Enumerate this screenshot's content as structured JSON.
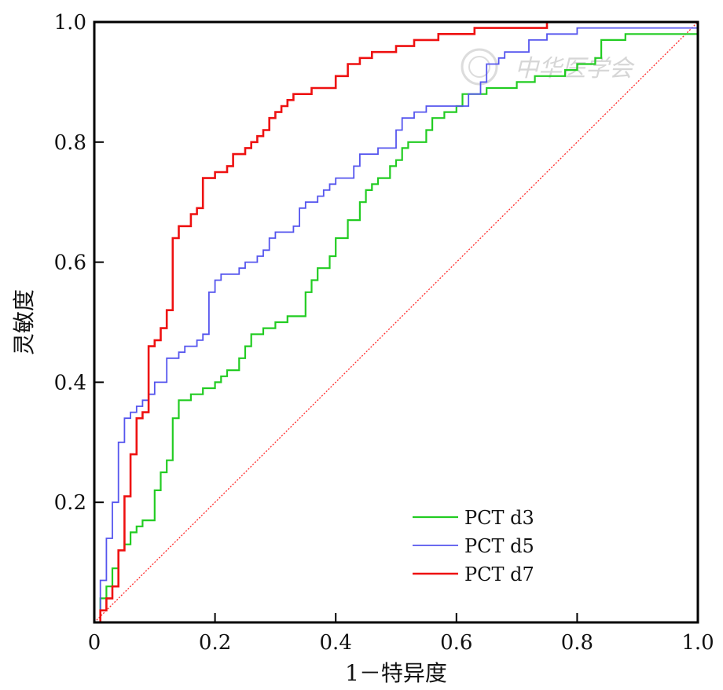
{
  "chart_data": {
    "type": "line",
    "title": "",
    "xlabel": "1－特异度",
    "ylabel": "灵敏度",
    "xlim": [
      0,
      1
    ],
    "ylim": [
      0,
      1
    ],
    "x_ticks": [
      "0",
      "0.2",
      "0.4",
      "0.6",
      "0.8",
      "1.0"
    ],
    "y_ticks": [
      "0.2",
      "0.4",
      "0.6",
      "0.8",
      "1.0"
    ],
    "grid": false,
    "legend_position": "bottom-right",
    "reference_line": {
      "style": "dotted",
      "color": "#ff2a2a",
      "from": [
        0,
        0
      ],
      "to": [
        1,
        1
      ]
    },
    "watermark": "中华医学会",
    "series": [
      {
        "name": "PCT d3",
        "color": "#22cc22",
        "points": [
          [
            0,
            0
          ],
          [
            0.01,
            0
          ],
          [
            0.01,
            0.04
          ],
          [
            0.02,
            0.04
          ],
          [
            0.02,
            0.06
          ],
          [
            0.03,
            0.06
          ],
          [
            0.03,
            0.09
          ],
          [
            0.04,
            0.09
          ],
          [
            0.04,
            0.12
          ],
          [
            0.05,
            0.12
          ],
          [
            0.05,
            0.13
          ],
          [
            0.06,
            0.13
          ],
          [
            0.06,
            0.15
          ],
          [
            0.07,
            0.15
          ],
          [
            0.07,
            0.16
          ],
          [
            0.08,
            0.16
          ],
          [
            0.08,
            0.17
          ],
          [
            0.1,
            0.17
          ],
          [
            0.1,
            0.22
          ],
          [
            0.11,
            0.22
          ],
          [
            0.11,
            0.25
          ],
          [
            0.12,
            0.25
          ],
          [
            0.12,
            0.27
          ],
          [
            0.13,
            0.27
          ],
          [
            0.13,
            0.34
          ],
          [
            0.14,
            0.34
          ],
          [
            0.14,
            0.37
          ],
          [
            0.16,
            0.37
          ],
          [
            0.16,
            0.38
          ],
          [
            0.18,
            0.38
          ],
          [
            0.18,
            0.39
          ],
          [
            0.2,
            0.39
          ],
          [
            0.2,
            0.4
          ],
          [
            0.21,
            0.4
          ],
          [
            0.21,
            0.41
          ],
          [
            0.22,
            0.41
          ],
          [
            0.22,
            0.42
          ],
          [
            0.24,
            0.42
          ],
          [
            0.24,
            0.44
          ],
          [
            0.25,
            0.44
          ],
          [
            0.25,
            0.46
          ],
          [
            0.26,
            0.46
          ],
          [
            0.26,
            0.48
          ],
          [
            0.28,
            0.48
          ],
          [
            0.28,
            0.49
          ],
          [
            0.3,
            0.49
          ],
          [
            0.3,
            0.5
          ],
          [
            0.32,
            0.5
          ],
          [
            0.32,
            0.51
          ],
          [
            0.35,
            0.51
          ],
          [
            0.35,
            0.55
          ],
          [
            0.36,
            0.55
          ],
          [
            0.36,
            0.57
          ],
          [
            0.37,
            0.57
          ],
          [
            0.37,
            0.59
          ],
          [
            0.39,
            0.59
          ],
          [
            0.39,
            0.61
          ],
          [
            0.4,
            0.61
          ],
          [
            0.4,
            0.64
          ],
          [
            0.42,
            0.64
          ],
          [
            0.42,
            0.67
          ],
          [
            0.44,
            0.67
          ],
          [
            0.44,
            0.7
          ],
          [
            0.45,
            0.7
          ],
          [
            0.45,
            0.72
          ],
          [
            0.46,
            0.72
          ],
          [
            0.46,
            0.73
          ],
          [
            0.47,
            0.73
          ],
          [
            0.47,
            0.74
          ],
          [
            0.49,
            0.74
          ],
          [
            0.49,
            0.76
          ],
          [
            0.5,
            0.76
          ],
          [
            0.5,
            0.77
          ],
          [
            0.51,
            0.77
          ],
          [
            0.51,
            0.79
          ],
          [
            0.52,
            0.79
          ],
          [
            0.52,
            0.8
          ],
          [
            0.55,
            0.8
          ],
          [
            0.55,
            0.82
          ],
          [
            0.56,
            0.82
          ],
          [
            0.56,
            0.84
          ],
          [
            0.58,
            0.84
          ],
          [
            0.58,
            0.85
          ],
          [
            0.6,
            0.85
          ],
          [
            0.6,
            0.86
          ],
          [
            0.61,
            0.86
          ],
          [
            0.61,
            0.88
          ],
          [
            0.65,
            0.88
          ],
          [
            0.65,
            0.89
          ],
          [
            0.7,
            0.89
          ],
          [
            0.7,
            0.9
          ],
          [
            0.73,
            0.9
          ],
          [
            0.73,
            0.91
          ],
          [
            0.78,
            0.91
          ],
          [
            0.78,
            0.92
          ],
          [
            0.8,
            0.92
          ],
          [
            0.8,
            0.93
          ],
          [
            0.83,
            0.93
          ],
          [
            0.83,
            0.94
          ],
          [
            0.84,
            0.94
          ],
          [
            0.84,
            0.97
          ],
          [
            0.88,
            0.97
          ],
          [
            0.88,
            0.98
          ],
          [
            1.0,
            0.98
          ],
          [
            1.0,
            1.0
          ]
        ]
      },
      {
        "name": "PCT d5",
        "color": "#5555ee",
        "points": [
          [
            0,
            0
          ],
          [
            0.01,
            0
          ],
          [
            0.01,
            0.07
          ],
          [
            0.02,
            0.07
          ],
          [
            0.02,
            0.14
          ],
          [
            0.03,
            0.14
          ],
          [
            0.03,
            0.2
          ],
          [
            0.04,
            0.2
          ],
          [
            0.04,
            0.3
          ],
          [
            0.05,
            0.3
          ],
          [
            0.05,
            0.34
          ],
          [
            0.06,
            0.34
          ],
          [
            0.06,
            0.35
          ],
          [
            0.07,
            0.35
          ],
          [
            0.07,
            0.36
          ],
          [
            0.08,
            0.36
          ],
          [
            0.08,
            0.37
          ],
          [
            0.09,
            0.37
          ],
          [
            0.09,
            0.38
          ],
          [
            0.1,
            0.38
          ],
          [
            0.1,
            0.4
          ],
          [
            0.12,
            0.4
          ],
          [
            0.12,
            0.44
          ],
          [
            0.14,
            0.44
          ],
          [
            0.14,
            0.45
          ],
          [
            0.15,
            0.45
          ],
          [
            0.15,
            0.46
          ],
          [
            0.17,
            0.46
          ],
          [
            0.17,
            0.47
          ],
          [
            0.18,
            0.47
          ],
          [
            0.18,
            0.48
          ],
          [
            0.19,
            0.48
          ],
          [
            0.19,
            0.55
          ],
          [
            0.2,
            0.55
          ],
          [
            0.2,
            0.57
          ],
          [
            0.21,
            0.57
          ],
          [
            0.21,
            0.58
          ],
          [
            0.24,
            0.58
          ],
          [
            0.24,
            0.59
          ],
          [
            0.25,
            0.59
          ],
          [
            0.25,
            0.6
          ],
          [
            0.27,
            0.6
          ],
          [
            0.27,
            0.61
          ],
          [
            0.28,
            0.61
          ],
          [
            0.28,
            0.62
          ],
          [
            0.29,
            0.62
          ],
          [
            0.29,
            0.64
          ],
          [
            0.3,
            0.64
          ],
          [
            0.3,
            0.65
          ],
          [
            0.33,
            0.65
          ],
          [
            0.33,
            0.66
          ],
          [
            0.34,
            0.66
          ],
          [
            0.34,
            0.69
          ],
          [
            0.35,
            0.69
          ],
          [
            0.35,
            0.7
          ],
          [
            0.37,
            0.7
          ],
          [
            0.37,
            0.71
          ],
          [
            0.38,
            0.71
          ],
          [
            0.38,
            0.72
          ],
          [
            0.39,
            0.72
          ],
          [
            0.39,
            0.73
          ],
          [
            0.4,
            0.73
          ],
          [
            0.4,
            0.74
          ],
          [
            0.43,
            0.74
          ],
          [
            0.43,
            0.76
          ],
          [
            0.44,
            0.76
          ],
          [
            0.44,
            0.78
          ],
          [
            0.47,
            0.78
          ],
          [
            0.47,
            0.79
          ],
          [
            0.5,
            0.79
          ],
          [
            0.5,
            0.82
          ],
          [
            0.51,
            0.82
          ],
          [
            0.51,
            0.84
          ],
          [
            0.53,
            0.84
          ],
          [
            0.53,
            0.85
          ],
          [
            0.55,
            0.85
          ],
          [
            0.55,
            0.86
          ],
          [
            0.62,
            0.86
          ],
          [
            0.62,
            0.88
          ],
          [
            0.64,
            0.88
          ],
          [
            0.64,
            0.9
          ],
          [
            0.65,
            0.9
          ],
          [
            0.65,
            0.93
          ],
          [
            0.67,
            0.93
          ],
          [
            0.67,
            0.94
          ],
          [
            0.68,
            0.94
          ],
          [
            0.68,
            0.95
          ],
          [
            0.72,
            0.95
          ],
          [
            0.72,
            0.97
          ],
          [
            0.75,
            0.97
          ],
          [
            0.75,
            0.98
          ],
          [
            0.8,
            0.98
          ],
          [
            0.8,
            0.99
          ],
          [
            1.0,
            0.99
          ],
          [
            1.0,
            1.0
          ]
        ]
      },
      {
        "name": "PCT d7",
        "color": "#ee1111",
        "points": [
          [
            0,
            0
          ],
          [
            0.01,
            0
          ],
          [
            0.01,
            0.02
          ],
          [
            0.02,
            0.02
          ],
          [
            0.02,
            0.04
          ],
          [
            0.03,
            0.04
          ],
          [
            0.03,
            0.06
          ],
          [
            0.04,
            0.06
          ],
          [
            0.04,
            0.12
          ],
          [
            0.05,
            0.12
          ],
          [
            0.05,
            0.21
          ],
          [
            0.06,
            0.21
          ],
          [
            0.06,
            0.28
          ],
          [
            0.07,
            0.28
          ],
          [
            0.07,
            0.34
          ],
          [
            0.08,
            0.34
          ],
          [
            0.08,
            0.35
          ],
          [
            0.09,
            0.35
          ],
          [
            0.09,
            0.46
          ],
          [
            0.1,
            0.46
          ],
          [
            0.1,
            0.47
          ],
          [
            0.11,
            0.47
          ],
          [
            0.11,
            0.49
          ],
          [
            0.12,
            0.49
          ],
          [
            0.12,
            0.52
          ],
          [
            0.13,
            0.52
          ],
          [
            0.13,
            0.64
          ],
          [
            0.14,
            0.64
          ],
          [
            0.14,
            0.66
          ],
          [
            0.16,
            0.66
          ],
          [
            0.16,
            0.68
          ],
          [
            0.17,
            0.68
          ],
          [
            0.17,
            0.69
          ],
          [
            0.18,
            0.69
          ],
          [
            0.18,
            0.74
          ],
          [
            0.2,
            0.74
          ],
          [
            0.2,
            0.75
          ],
          [
            0.22,
            0.75
          ],
          [
            0.22,
            0.76
          ],
          [
            0.23,
            0.76
          ],
          [
            0.23,
            0.78
          ],
          [
            0.25,
            0.78
          ],
          [
            0.25,
            0.79
          ],
          [
            0.26,
            0.79
          ],
          [
            0.26,
            0.8
          ],
          [
            0.27,
            0.8
          ],
          [
            0.27,
            0.81
          ],
          [
            0.28,
            0.81
          ],
          [
            0.28,
            0.82
          ],
          [
            0.29,
            0.82
          ],
          [
            0.29,
            0.84
          ],
          [
            0.3,
            0.84
          ],
          [
            0.3,
            0.85
          ],
          [
            0.31,
            0.85
          ],
          [
            0.31,
            0.86
          ],
          [
            0.32,
            0.86
          ],
          [
            0.32,
            0.87
          ],
          [
            0.33,
            0.87
          ],
          [
            0.33,
            0.88
          ],
          [
            0.36,
            0.88
          ],
          [
            0.36,
            0.89
          ],
          [
            0.4,
            0.89
          ],
          [
            0.4,
            0.91
          ],
          [
            0.42,
            0.91
          ],
          [
            0.42,
            0.93
          ],
          [
            0.44,
            0.93
          ],
          [
            0.44,
            0.94
          ],
          [
            0.46,
            0.94
          ],
          [
            0.46,
            0.95
          ],
          [
            0.5,
            0.95
          ],
          [
            0.5,
            0.96
          ],
          [
            0.53,
            0.96
          ],
          [
            0.53,
            0.97
          ],
          [
            0.57,
            0.97
          ],
          [
            0.57,
            0.98
          ],
          [
            0.63,
            0.98
          ],
          [
            0.63,
            0.99
          ],
          [
            0.75,
            0.99
          ],
          [
            0.75,
            1.0
          ],
          [
            1.0,
            1.0
          ]
        ]
      }
    ]
  }
}
